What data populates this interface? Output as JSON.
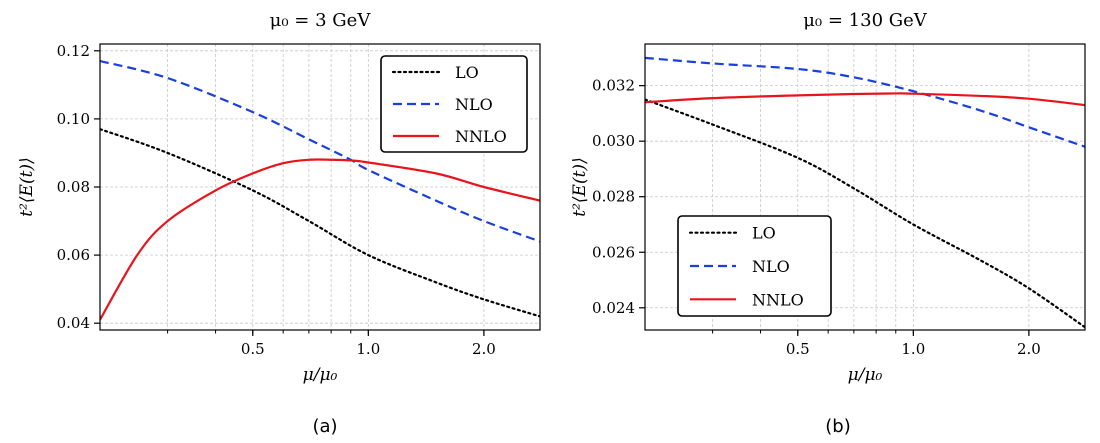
{
  "chart_data": [
    {
      "type": "line",
      "panel": "a",
      "title": "μ₀ = 3 GeV",
      "xlabel": "μ/μ₀",
      "ylabel": "t²⟨E(t)⟩",
      "caption": "(a)",
      "x_scale": "log",
      "xlim": [
        0.2,
        2.8
      ],
      "ylim": [
        0.038,
        0.122
      ],
      "x_ticks": [
        0.5,
        1.0,
        2.0
      ],
      "x_tick_labels": [
        "0.5",
        "1.0",
        "2.0"
      ],
      "y_ticks": [
        0.04,
        0.06,
        0.08,
        0.1,
        0.12
      ],
      "y_tick_labels": [
        "0.04",
        "0.06",
        "0.08",
        "0.10",
        "0.12"
      ],
      "grid": true,
      "legend_position": "top-right",
      "series": [
        {
          "name": "LO",
          "color": "#000000",
          "style": "dotted",
          "x": [
            0.2,
            0.3,
            0.5,
            0.7,
            1.0,
            1.5,
            2.0,
            2.8
          ],
          "y": [
            0.097,
            0.09,
            0.079,
            0.07,
            0.06,
            0.052,
            0.047,
            0.042
          ]
        },
        {
          "name": "NLO",
          "color": "#1a3fe0",
          "style": "dashed",
          "x": [
            0.2,
            0.3,
            0.5,
            0.7,
            0.9,
            1.0,
            1.5,
            2.0,
            2.8
          ],
          "y": [
            0.117,
            0.112,
            0.102,
            0.094,
            0.088,
            0.085,
            0.076,
            0.07,
            0.064
          ]
        },
        {
          "name": "NNLO",
          "color": "#e8141c",
          "style": "solid",
          "x": [
            0.2,
            0.25,
            0.3,
            0.4,
            0.5,
            0.6,
            0.7,
            0.8,
            0.9,
            1.0,
            1.5,
            2.0,
            2.8
          ],
          "y": [
            0.041,
            0.06,
            0.07,
            0.079,
            0.084,
            0.087,
            0.088,
            0.088,
            0.0878,
            0.0872,
            0.084,
            0.08,
            0.076
          ]
        }
      ]
    },
    {
      "type": "line",
      "panel": "b",
      "title": "μ₀ = 130 GeV",
      "xlabel": "μ/μ₀",
      "ylabel": "t²⟨E(t)⟩",
      "caption": "(b)",
      "x_scale": "log",
      "xlim": [
        0.2,
        2.8
      ],
      "ylim": [
        0.0232,
        0.0335
      ],
      "x_ticks": [
        0.5,
        1.0,
        2.0
      ],
      "x_tick_labels": [
        "0.5",
        "1.0",
        "2.0"
      ],
      "y_ticks": [
        0.024,
        0.026,
        0.028,
        0.03,
        0.032
      ],
      "y_tick_labels": [
        "0.024",
        "0.026",
        "0.028",
        "0.030",
        "0.032"
      ],
      "grid": true,
      "legend_position": "bottom-left",
      "series": [
        {
          "name": "LO",
          "color": "#000000",
          "style": "dotted",
          "x": [
            0.2,
            0.3,
            0.5,
            0.7,
            1.0,
            1.5,
            2.0,
            2.8
          ],
          "y": [
            0.0315,
            0.0306,
            0.0294,
            0.0283,
            0.027,
            0.0257,
            0.0247,
            0.0233
          ]
        },
        {
          "name": "NLO",
          "color": "#1a3fe0",
          "style": "dashed",
          "x": [
            0.2,
            0.3,
            0.5,
            0.7,
            1.0,
            1.5,
            2.0,
            2.8
          ],
          "y": [
            0.033,
            0.0328,
            0.0326,
            0.0323,
            0.0318,
            0.0311,
            0.0305,
            0.0298
          ]
        },
        {
          "name": "NNLO",
          "color": "#e8141c",
          "style": "solid",
          "x": [
            0.2,
            0.3,
            0.5,
            0.7,
            0.9,
            1.0,
            1.5,
            2.0,
            2.8
          ],
          "y": [
            0.0314,
            0.03155,
            0.03165,
            0.0317,
            0.03172,
            0.03171,
            0.03163,
            0.03153,
            0.0313
          ]
        }
      ]
    }
  ]
}
